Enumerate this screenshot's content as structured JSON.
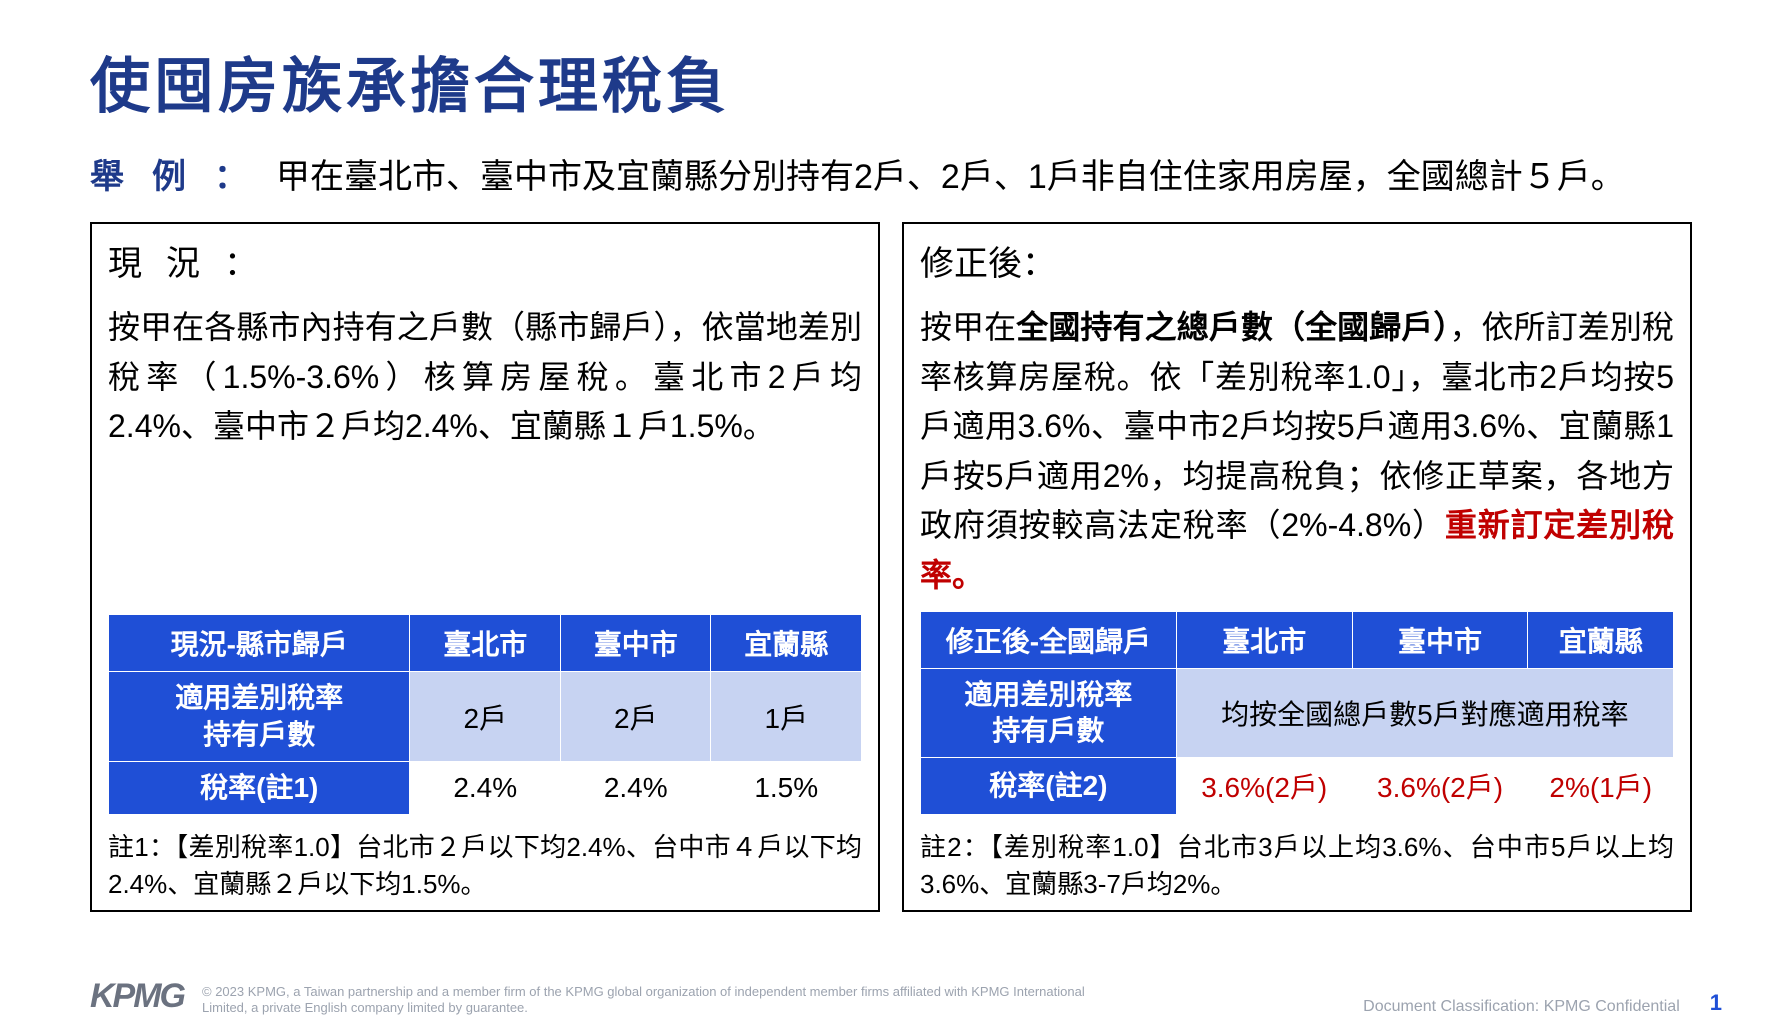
{
  "title": "使囤房族承擔合理稅負",
  "example": {
    "label": "舉例：",
    "text": "甲在臺北市、臺中市及宜蘭縣分別持有2戶、2戶、1戶非自住住家用房屋，全國總計５戶。"
  },
  "left": {
    "heading": "現況：",
    "body": "按甲在各縣市內持有之戶數（縣市歸戶），依當地差別稅率（1.5%-3.6%）核算房屋稅。臺北市2戶均2.4%、臺中市２戶均2.4%、宜蘭縣１戶1.5%。",
    "table": {
      "head": [
        "現況-縣市歸戶",
        "臺北市",
        "臺中市",
        "宜蘭縣"
      ],
      "row1_label": "適用差別稅率\n持有戶數",
      "row1": [
        "2戶",
        "2戶",
        "1戶"
      ],
      "row2_label": "稅率(註1)",
      "row2": [
        "2.4%",
        "2.4%",
        "1.5%"
      ]
    },
    "footnote": "註1：【差別稅率1.0】台北市２戶以下均2.4%、台中市４戶以下均2.4%、宜蘭縣２戶以下均1.5%。"
  },
  "right": {
    "heading": "修正後：",
    "body_pre": "按甲在",
    "body_bold": "全國持有之總戶數（全國歸戶）",
    "body_mid": "，依所訂差別稅率核算房屋稅。依「差別稅率1.0」，臺北市2戶均按5戶適用3.6%、臺中市2戶均按5戶適用3.6%、宜蘭縣1戶按5戶適用2%，均提高稅負；依修正草案，各地方政府須按較高法定稅率（2%-4.8%）",
    "body_red": "重新訂定差別稅率。",
    "table": {
      "head": [
        "修正後-全國歸戶",
        "臺北市",
        "臺中市",
        "宜蘭縣"
      ],
      "row1_label": "適用差別稅率\n持有戶數",
      "row1_merged": "均按全國總戶數5戶對應適用稅率",
      "row2_label": "稅率(註2)",
      "row2": [
        "3.6%(2戶)",
        "3.6%(2戶)",
        "2%(1戶)"
      ]
    },
    "footnote": "註2：【差別稅率1.0】台北市3戶以上均3.6%、台中市5戶以上均3.6%、宜蘭縣3-7戶均2%。"
  },
  "footer": {
    "logo": "KPMG",
    "copyright": "© 2023 KPMG, a Taiwan partnership and a member firm of the KPMG global organization of independent member firms affiliated with KPMG International Limited, a private English company limited by guarantee.",
    "classification": "Document Classification: KPMG Confidential",
    "page": "1"
  },
  "colors": {
    "title": "#1e3a8a",
    "table_header_bg": "#1f4fd6",
    "table_light_bg": "#c7d3f2",
    "red": "#c00000",
    "muted": "#9ca3af"
  }
}
